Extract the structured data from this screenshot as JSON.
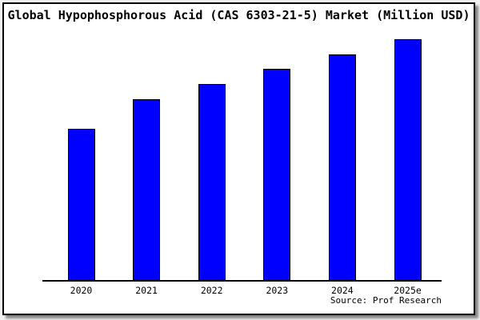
{
  "page": {
    "background_color": "#f2f2f2",
    "frame_background": "#ffffff",
    "frame_border_color": "#000000"
  },
  "title": "Global Hypophosphorous Acid (CAS 6303-21-5) Market (Million USD)",
  "source": "Source: Prof Research",
  "chart_data": {
    "type": "bar",
    "title": "Global Hypophosphorous Acid (CAS 6303-21-5) Market (Million USD)",
    "categories": [
      "2020",
      "2021",
      "2022",
      "2023",
      "2024",
      "2025e"
    ],
    "values_relative_pct_of_max": [
      62.8,
      75.1,
      81.4,
      87.7,
      93.7,
      100
    ],
    "xlabel": "",
    "ylabel": "",
    "y_axis_tick_labels_visible": false,
    "grid": false,
    "legend": false,
    "bar_color": "#0000ff",
    "bar_border_color": "#000000",
    "axis_line_color": "#000000"
  }
}
